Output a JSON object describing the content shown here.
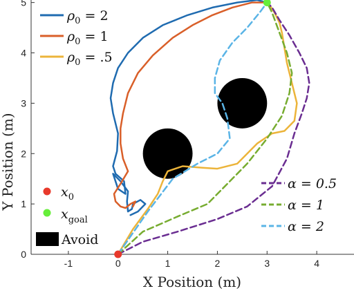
{
  "chart_data": {
    "type": "line",
    "xlabel": "X Position (m)",
    "ylabel": "Y Position (m)",
    "xlim": [
      -1.75,
      4.75
    ],
    "ylim": [
      0,
      5.05
    ],
    "xticks": [
      -1,
      0,
      1,
      2,
      3,
      4
    ],
    "yticks": [
      0,
      1,
      2,
      3,
      4,
      5
    ],
    "xtick_labels": [
      "-1",
      "0",
      "1",
      "2",
      "3",
      "4"
    ],
    "ytick_labels": [
      "0",
      "1",
      "2",
      "3",
      "4",
      "5"
    ],
    "grid": false,
    "start": {
      "label": "x0",
      "x": 0,
      "y": 0,
      "color": "#e8392b"
    },
    "goal": {
      "label": "xgoal",
      "x": 3,
      "y": 5,
      "color": "#66ee3a"
    },
    "obstacles_label": "Avoid",
    "obstacles": [
      {
        "cx": 1.0,
        "cy": 2.0,
        "r": 0.5
      },
      {
        "cx": 2.5,
        "cy": 3.0,
        "r": 0.5
      }
    ],
    "legend_top": {
      "position": "top-left",
      "entries": [
        {
          "base": "ρ",
          "sub": "0",
          "rest": " = 2"
        },
        {
          "base": "ρ",
          "sub": "0",
          "rest": " = 1"
        },
        {
          "base": "ρ",
          "sub": "0",
          "rest": " = .5"
        }
      ]
    },
    "legend_right": {
      "position": "lower-right",
      "entries": [
        {
          "text": "α = 0.5"
        },
        {
          "text": "α = 1"
        },
        {
          "text": "α = 2"
        }
      ]
    },
    "series": [
      {
        "color": "#1f6bb0",
        "style": "solid",
        "x": [
          0.25,
          0.4,
          0.55,
          0.45,
          0.3,
          0.28,
          0.2,
          0.18,
          0.2,
          0.05,
          -0.1,
          0.0,
          0.15,
          0.12,
          -0.05,
          -0.1,
          -0.02,
          0.0,
          -0.1,
          -0.15,
          -0.1,
          0.0,
          0.2,
          0.5,
          0.9,
          1.4,
          1.9,
          2.4,
          2.8,
          3.0
        ],
        "y": [
          0.78,
          0.85,
          1.0,
          1.08,
          1.0,
          0.9,
          0.85,
          1.05,
          1.25,
          1.45,
          1.6,
          1.3,
          1.2,
          1.45,
          1.6,
          1.75,
          2.05,
          2.4,
          2.8,
          3.1,
          3.4,
          3.7,
          4.0,
          4.3,
          4.55,
          4.75,
          4.9,
          5.0,
          5.05,
          5.0
        ]
      },
      {
        "color": "#d95f29",
        "style": "solid",
        "x": [
          0.3,
          0.35,
          0.25,
          0.15,
          0.05,
          -0.05,
          -0.08,
          0.05,
          0.2,
          0.1,
          0.05,
          0.05,
          0.1,
          0.2,
          0.4,
          0.7,
          1.1,
          1.5,
          1.9,
          2.3,
          2.7,
          2.95
        ],
        "y": [
          0.95,
          1.05,
          1.0,
          0.92,
          0.95,
          1.05,
          1.2,
          1.4,
          1.65,
          1.9,
          2.2,
          2.5,
          2.8,
          3.2,
          3.6,
          3.95,
          4.3,
          4.55,
          4.75,
          4.9,
          5.0,
          5.0
        ]
      },
      {
        "color": "#ecb43a",
        "style": "solid",
        "x": [
          0.0,
          0.3,
          0.6,
          0.8,
          0.9,
          1.0,
          1.3,
          1.7,
          2.0,
          2.4,
          2.8,
          3.1,
          3.35,
          3.55,
          3.6,
          3.5,
          3.4,
          3.35,
          3.3,
          3.25,
          3.15,
          3.05,
          3.0
        ],
        "y": [
          0.0,
          0.5,
          0.9,
          1.2,
          1.45,
          1.65,
          1.75,
          1.72,
          1.7,
          1.8,
          2.2,
          2.4,
          2.45,
          2.65,
          3.0,
          3.4,
          3.8,
          4.1,
          4.4,
          4.6,
          4.8,
          4.95,
          5.0
        ]
      }
    ],
    "series_alpha": [
      {
        "color": "#6a2d91",
        "style": "dashed",
        "x": [
          0.0,
          0.5,
          1.2,
          2.0,
          2.6,
          3.1,
          3.4,
          3.55,
          3.7,
          3.8,
          3.85,
          3.8,
          3.65,
          3.45,
          3.25,
          3.1,
          3.0
        ],
        "y": [
          0.0,
          0.25,
          0.45,
          0.7,
          0.95,
          1.35,
          1.9,
          2.4,
          2.8,
          3.1,
          3.4,
          3.7,
          4.0,
          4.35,
          4.65,
          4.9,
          5.0
        ]
      },
      {
        "color": "#77ac30",
        "style": "dashed",
        "x": [
          0.0,
          0.5,
          1.2,
          1.8,
          2.2,
          2.6,
          3.0,
          3.3,
          3.45,
          3.5,
          3.4,
          3.25,
          3.1,
          3.0
        ],
        "y": [
          0.0,
          0.45,
          0.75,
          1.0,
          1.4,
          1.8,
          2.3,
          2.75,
          3.2,
          3.6,
          4.0,
          4.4,
          4.8,
          5.0
        ]
      },
      {
        "color": "#5ab4e6",
        "style": "dashed",
        "x": [
          0.0,
          0.6,
          1.1,
          1.6,
          2.0,
          2.25,
          2.2,
          2.1,
          1.95,
          1.95,
          2.05,
          2.3,
          2.6,
          2.85,
          3.0
        ],
        "y": [
          0.0,
          0.85,
          1.5,
          1.8,
          2.0,
          2.3,
          2.7,
          3.0,
          3.2,
          3.5,
          3.85,
          4.2,
          4.5,
          4.8,
          5.0
        ]
      }
    ]
  }
}
